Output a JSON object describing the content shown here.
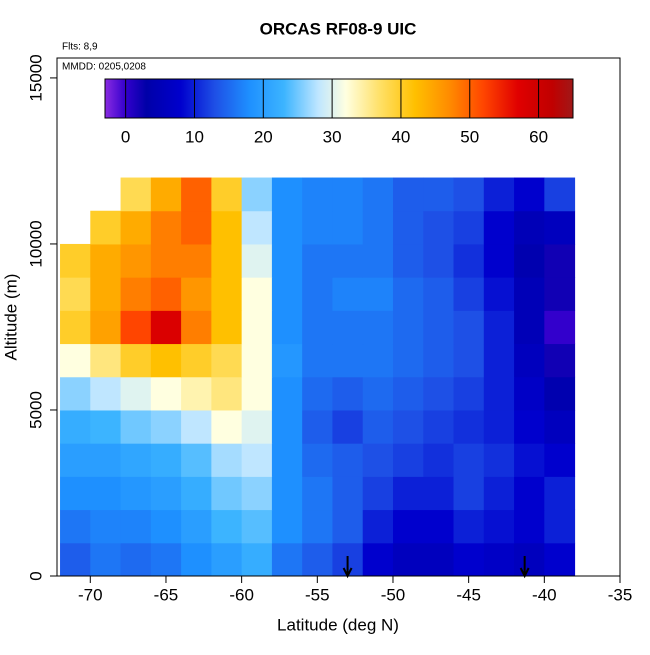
{
  "chart_data": {
    "type": "heatmap",
    "title": "ORCAS RF08-9 UIC",
    "annotations": [
      "Flts: 8,9",
      "MMDD: 0205,0208"
    ],
    "x_label": "Latitude (deg N)",
    "y_label": "Altitude (m)",
    "xlim": [
      -72.2,
      -35
    ],
    "xticks": [
      -70,
      -65,
      -60,
      -55,
      -50,
      -45,
      -40,
      -35
    ],
    "ylim": [
      0,
      15600
    ],
    "yticks": [
      0,
      5000,
      10000,
      15000
    ],
    "x_edges": [
      -72,
      -70,
      -68,
      -66,
      -64,
      -62,
      -60,
      -58,
      -56,
      -54,
      -52,
      -50,
      -48,
      -46,
      -44,
      -42,
      -40,
      -38
    ],
    "y_edges": [
      0,
      1000,
      2000,
      3000,
      4000,
      5000,
      6000,
      7000,
      8000,
      9000,
      10000,
      11000,
      12000
    ],
    "values": [
      [
        14,
        16,
        15,
        16,
        18,
        20,
        22,
        16,
        14,
        12,
        8,
        6,
        6,
        8,
        7,
        6,
        8
      ],
      [
        16,
        17,
        17,
        18,
        20,
        23,
        24,
        18,
        16,
        14,
        10,
        8,
        8,
        10,
        9,
        8,
        10
      ],
      [
        18,
        18,
        19,
        20,
        22,
        25,
        26,
        18,
        16,
        14,
        12,
        10,
        10,
        12,
        10,
        8,
        10
      ],
      [
        20,
        20,
        21,
        22,
        24,
        27,
        28,
        18,
        15,
        14,
        13,
        12,
        11,
        12,
        11,
        9,
        8
      ],
      [
        22,
        23,
        25,
        26,
        28,
        32,
        30,
        18,
        14,
        12,
        14,
        13,
        12,
        11,
        10,
        8,
        6
      ],
      [
        26,
        28,
        30,
        32,
        34,
        36,
        32,
        18,
        15,
        14,
        15,
        14,
        13,
        12,
        10,
        7,
        4
      ],
      [
        32,
        36,
        40,
        42,
        40,
        38,
        32,
        19,
        16,
        16,
        16,
        15,
        14,
        13,
        10,
        6,
        2
      ],
      [
        40,
        45,
        52,
        58,
        48,
        42,
        32,
        18,
        16,
        16,
        16,
        15,
        14,
        13,
        10,
        5,
        0
      ],
      [
        38,
        44,
        48,
        50,
        46,
        42,
        32,
        18,
        16,
        17,
        17,
        15,
        14,
        12,
        9,
        5,
        2
      ],
      [
        40,
        44,
        46,
        48,
        48,
        42,
        30,
        18,
        16,
        16,
        16,
        14,
        13,
        11,
        8,
        4,
        2
      ],
      [
        null,
        40,
        44,
        48,
        50,
        42,
        28,
        18,
        17,
        17,
        16,
        14,
        13,
        12,
        8,
        5,
        6
      ],
      [
        null,
        null,
        38,
        44,
        50,
        40,
        26,
        18,
        17,
        17,
        16,
        14,
        14,
        13,
        10,
        8,
        12
      ]
    ],
    "colorbar_lim": [
      -3,
      65
    ],
    "colorbar_ticks": [
      0,
      10,
      20,
      30,
      40,
      50,
      60
    ],
    "colorscale": [
      {
        "value": -3,
        "color": "#8a2be2"
      },
      {
        "value": 0,
        "color": "#3300cc"
      },
      {
        "value": 3,
        "color": "#0000a8"
      },
      {
        "value": 8,
        "color": "#0000cd"
      },
      {
        "value": 13,
        "color": "#1e50e6"
      },
      {
        "value": 18,
        "color": "#1e90ff"
      },
      {
        "value": 23,
        "color": "#3cb4ff"
      },
      {
        "value": 28,
        "color": "#bfe6ff"
      },
      {
        "value": 32,
        "color": "#ffffe0"
      },
      {
        "value": 37,
        "color": "#ffe066"
      },
      {
        "value": 42,
        "color": "#ffc000"
      },
      {
        "value": 47,
        "color": "#ff8c00"
      },
      {
        "value": 52,
        "color": "#ff4500"
      },
      {
        "value": 57,
        "color": "#e00000"
      },
      {
        "value": 62,
        "color": "#c00000"
      },
      {
        "value": 65,
        "color": "#a01818"
      }
    ],
    "arrows_x": [
      -53,
      -41.3
    ]
  }
}
